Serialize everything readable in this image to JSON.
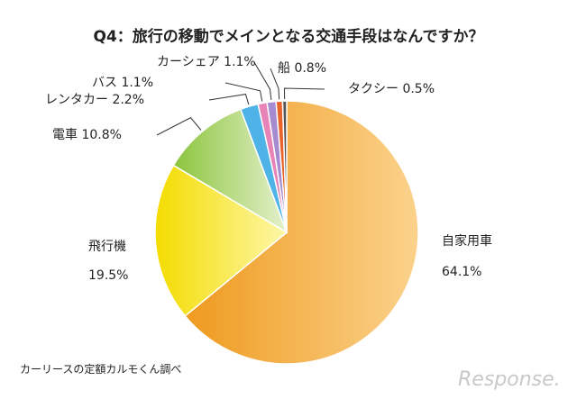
{
  "chart_data": {
    "type": "pie",
    "title": "Q4：旅行の移動でメインとなる交通手段はなんですか？",
    "slices": [
      {
        "label": "自家用車",
        "value": 64.1,
        "value_label": "64.1%",
        "color": "#f2a43a"
      },
      {
        "label": "飛行機",
        "value": 19.5,
        "value_label": "19.5%",
        "color": "#f7e632"
      },
      {
        "label": "電車",
        "value": 10.8,
        "value_label": "10.8%",
        "color": "#9fcf5a"
      },
      {
        "label": "レンタカー",
        "value": 2.2,
        "value_label": "2.2%",
        "color": "#4fb3e8"
      },
      {
        "label": "バス",
        "value": 1.1,
        "value_label": "1.1%",
        "color": "#e883b8"
      },
      {
        "label": "カーシェア",
        "value": 1.1,
        "value_label": "1.1%",
        "color": "#a78bd0"
      },
      {
        "label": "船",
        "value": 0.8,
        "value_label": "0.8%",
        "color": "#e8642a"
      },
      {
        "label": "タクシー",
        "value": 0.5,
        "value_label": "0.5%",
        "color": "#555555"
      }
    ]
  },
  "source": "カーリースの定額カルモくん調べ",
  "watermark": "Response."
}
